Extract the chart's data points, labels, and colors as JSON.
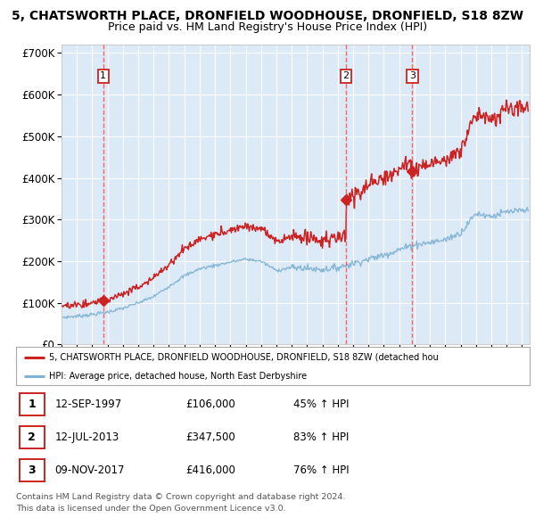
{
  "title_line1": "5, CHATSWORTH PLACE, DRONFIELD WOODHOUSE, DRONFIELD, S18 8ZW",
  "title_line2": "Price paid vs. HM Land Registry's House Price Index (HPI)",
  "plot_bg_color": "#dce9f7",
  "fig_bg_color": "#ffffff",
  "ylim": [
    0,
    720000
  ],
  "yticks": [
    0,
    100000,
    200000,
    300000,
    400000,
    500000,
    600000,
    700000
  ],
  "ytick_labels": [
    "£0",
    "£100K",
    "£200K",
    "£300K",
    "£400K",
    "£500K",
    "£600K",
    "£700K"
  ],
  "xmin": 1995.0,
  "xmax": 2025.5,
  "sale_dates": [
    1997.72,
    2013.53,
    2017.86
  ],
  "sale_prices": [
    106000,
    347500,
    416000
  ],
  "sale_labels": [
    "1",
    "2",
    "3"
  ],
  "legend_line1": "5, CHATSWORTH PLACE, DRONFIELD WOODHOUSE, DRONFIELD, S18 8ZW (detached hou",
  "legend_line2": "HPI: Average price, detached house, North East Derbyshire",
  "table_rows": [
    [
      "1",
      "12-SEP-1997",
      "£106,000",
      "45% ↑ HPI"
    ],
    [
      "2",
      "12-JUL-2013",
      "£347,500",
      "83% ↑ HPI"
    ],
    [
      "3",
      "09-NOV-2017",
      "£416,000",
      "76% ↑ HPI"
    ]
  ],
  "footer_line1": "Contains HM Land Registry data © Crown copyright and database right 2024.",
  "footer_line2": "This data is licensed under the Open Government Licence v3.0.",
  "red_line_color": "#cc2222",
  "blue_line_color": "#7fb3d3",
  "marker_color": "#cc2222",
  "grid_color": "#ffffff",
  "spine_color": "#cccccc"
}
